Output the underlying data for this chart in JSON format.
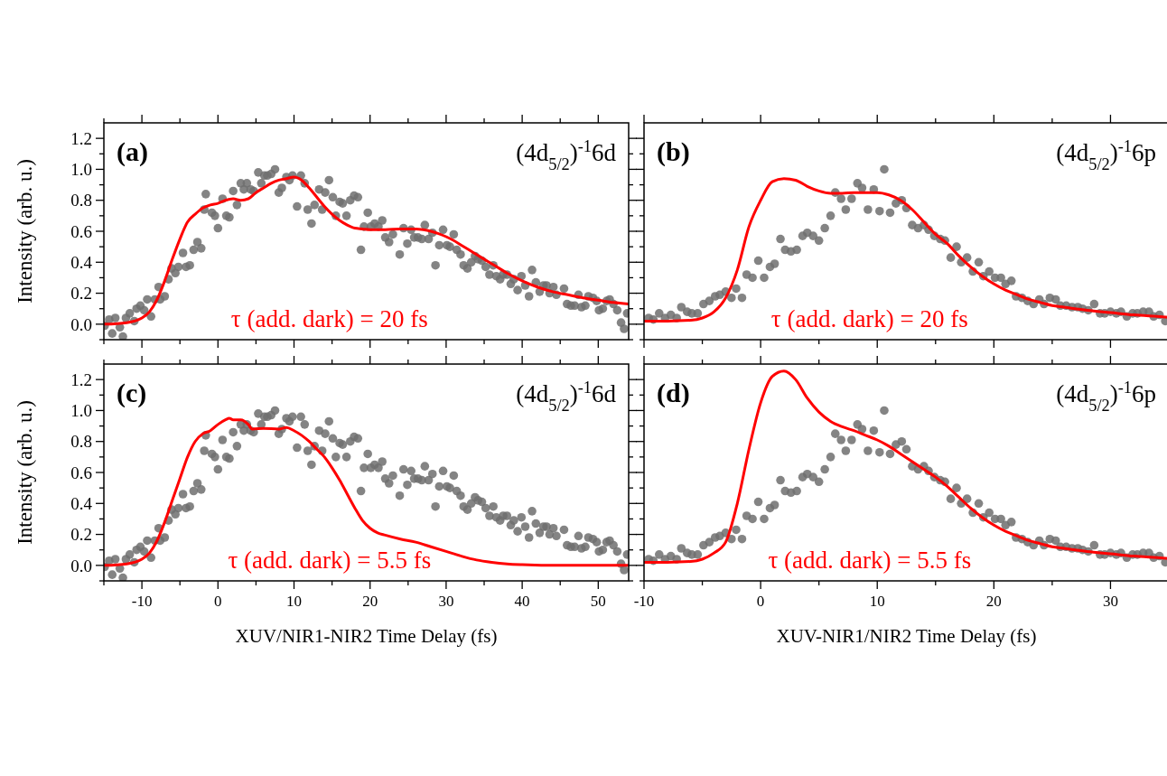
{
  "chart_data": [
    {
      "type": "scatter",
      "ylabel": "Intensity (arb. u.)",
      "xlim": [
        -15,
        54
      ],
      "ylim": [
        -0.1,
        1.3
      ],
      "tick_labels": "y",
      "xticks": [
        {
          "value": -15,
          "label": null
        },
        -10,
        {
          "value": -5,
          "label": null
        },
        0,
        {
          "value": 5,
          "label": null
        },
        10,
        {
          "value": 15,
          "label": null
        },
        20,
        {
          "value": 25,
          "label": null
        },
        30,
        {
          "value": 35,
          "label": null
        },
        40,
        {
          "value": 45,
          "label": null
        },
        50
      ],
      "yticks": [
        {
          "value": -0.1,
          "label": null
        },
        {
          "value": 0,
          "label": "0.0"
        },
        {
          "value": 0.1,
          "label": null
        },
        0.2,
        {
          "value": 0.3,
          "label": null
        },
        0.4,
        {
          "value": 0.5,
          "label": null
        },
        0.6,
        {
          "value": 0.7,
          "label": null
        },
        0.8,
        {
          "value": 0.9,
          "label": null
        },
        {
          "value": 1,
          "label": "1.0"
        },
        {
          "value": 1.1,
          "label": null
        },
        1.2
      ],
      "annotations": [
        "(a)",
        "(4d$_{5/2}$)$^{-1}$6d",
        "τ (add. dark) = 20 fs"
      ],
      "series": [
        {
          "type": "scatter",
          "marker": "circle",
          "color": "#6e6e6e",
          "x": [
            -14.9,
            -14.3,
            -13.9,
            -13.5,
            -12.9,
            -12.5,
            -12.1,
            -11.6,
            -11.0,
            -10.7,
            -10.2,
            -9.7,
            -9.3,
            -8.8,
            -8.3,
            -7.8,
            -7.6,
            -7.0,
            -6.5,
            -6.1,
            -5.6,
            -5.2,
            -4.6,
            -4.2,
            -3.7,
            -3.2,
            -2.7,
            -2.2,
            -1.8,
            -1.6,
            -0.8,
            -0.4,
            0.0,
            0.6,
            1.1,
            1.5,
            2.0,
            2.5,
            3.0,
            3.4,
            3.8,
            4.3,
            4.7,
            5.3,
            5.7,
            6.1,
            6.5,
            7.0,
            7.5,
            8.0,
            8.4,
            9.0,
            9.4,
            9.8,
            10.4,
            10.9,
            11.4,
            11.8,
            12.3,
            12.7,
            13.3,
            13.7,
            14.1,
            14.6,
            15.1,
            15.5,
            16.0,
            16.4,
            16.9,
            17.4,
            17.9,
            18.4,
            18.8,
            19.2,
            19.7,
            20.1,
            20.6,
            21.1,
            21.6,
            22.0,
            22.5,
            23.0,
            23.9,
            24.4,
            24.9,
            25.4,
            25.8,
            26.3,
            26.8,
            27.2,
            27.7,
            28.2,
            28.6,
            29.1,
            29.6,
            30.1,
            30.5,
            31.0,
            31.4,
            31.9,
            32.3,
            32.8,
            33.3,
            33.8,
            34.2,
            34.7,
            35.2,
            35.7,
            36.2,
            36.6,
            37.1,
            37.5,
            38.0,
            38.5,
            38.9,
            39.4,
            39.9,
            40.4,
            40.9,
            41.3,
            41.8,
            42.3,
            42.8,
            43.2,
            43.6,
            44.1,
            44.5,
            45.5,
            45.9,
            46.4,
            46.9,
            47.4,
            47.8,
            48.3,
            48.7,
            49.3,
            49.8,
            50.1,
            50.6,
            51.1,
            51.5,
            52.0,
            52.5,
            53.0,
            53.4,
            53.8
          ],
          "values": [
            -0.01,
            0.03,
            -0.06,
            0.04,
            -0.02,
            -0.08,
            0.04,
            0.07,
            0.02,
            0.1,
            0.12,
            0.09,
            0.16,
            0.05,
            0.16,
            0.24,
            0.16,
            0.18,
            0.29,
            0.36,
            0.33,
            0.37,
            0.46,
            0.37,
            0.38,
            0.48,
            0.53,
            0.49,
            0.74,
            0.84,
            0.72,
            0.7,
            0.62,
            0.81,
            0.7,
            0.69,
            0.86,
            0.77,
            0.91,
            0.87,
            0.91,
            0.87,
            0.86,
            0.98,
            0.91,
            0.96,
            0.96,
            0.97,
            1.0,
            0.85,
            0.88,
            0.95,
            0.93,
            0.96,
            0.76,
            0.96,
            0.91,
            0.74,
            0.65,
            0.77,
            0.87,
            0.74,
            0.85,
            0.93,
            0.82,
            0.7,
            0.79,
            0.78,
            0.7,
            0.8,
            0.83,
            0.82,
            0.48,
            0.63,
            0.72,
            0.63,
            0.65,
            0.63,
            0.67,
            0.56,
            0.53,
            0.58,
            0.45,
            0.62,
            0.52,
            0.61,
            0.56,
            0.56,
            0.55,
            0.64,
            0.55,
            0.59,
            0.38,
            0.51,
            0.61,
            0.51,
            0.5,
            0.58,
            0.48,
            0.45,
            0.38,
            0.36,
            0.4,
            0.44,
            0.42,
            0.41,
            0.37,
            0.32,
            0.38,
            0.31,
            0.29,
            0.32,
            0.32,
            0.26,
            0.29,
            0.22,
            0.31,
            0.25,
            0.18,
            0.35,
            0.27,
            0.21,
            0.25,
            0.25,
            0.2,
            0.24,
            0.19,
            0.23,
            0.13,
            0.12,
            0.12,
            0.19,
            0.11,
            0.12,
            0.18,
            0.17,
            0.15,
            0.09,
            0.1,
            0.15,
            0.16,
            0.13,
            0.09,
            0.01,
            -0.03,
            0.07
          ]
        },
        {
          "type": "line",
          "color": "#ff0000",
          "x": [
            -15,
            -12,
            -10,
            -9,
            -8,
            -7,
            -6,
            -5,
            -4,
            -3,
            -2,
            -1,
            0,
            1,
            2,
            3,
            4,
            5,
            6,
            7,
            8,
            9,
            10,
            11,
            12,
            13,
            14,
            15,
            16,
            17,
            18,
            19,
            20,
            22,
            24,
            26,
            27,
            28,
            29,
            30,
            31,
            32,
            33,
            34,
            35,
            36,
            37,
            38,
            40,
            42,
            44,
            46,
            48,
            50,
            52,
            54
          ],
          "values": [
            0.0,
            0.01,
            0.04,
            0.08,
            0.16,
            0.28,
            0.42,
            0.55,
            0.66,
            0.71,
            0.75,
            0.77,
            0.78,
            0.8,
            0.81,
            0.8,
            0.81,
            0.85,
            0.88,
            0.91,
            0.93,
            0.94,
            0.95,
            0.93,
            0.88,
            0.82,
            0.76,
            0.71,
            0.67,
            0.64,
            0.62,
            0.615,
            0.61,
            0.61,
            0.615,
            0.615,
            0.61,
            0.6,
            0.585,
            0.565,
            0.54,
            0.51,
            0.48,
            0.45,
            0.42,
            0.39,
            0.36,
            0.33,
            0.28,
            0.24,
            0.21,
            0.19,
            0.17,
            0.155,
            0.14,
            0.13
          ]
        }
      ]
    },
    {
      "type": "scatter",
      "xlim": [
        -10,
        35
      ],
      "ylim": [
        -0.1,
        1.3
      ],
      "tick_labels": false,
      "xticks": [
        -10,
        {
          "value": -5,
          "label": null
        },
        0,
        {
          "value": 5,
          "label": null
        },
        10,
        {
          "value": 15,
          "label": null
        },
        20,
        {
          "value": 25,
          "label": null
        },
        30,
        {
          "value": 35,
          "label": null
        }
      ],
      "yticks": [
        {
          "value": -0.1,
          "label": null
        },
        0,
        {
          "value": 0.1,
          "label": null
        },
        0.2,
        {
          "value": 0.3,
          "label": null
        },
        0.4,
        {
          "value": 0.5,
          "label": null
        },
        0.6,
        {
          "value": 0.7,
          "label": null
        },
        0.8,
        {
          "value": 0.9,
          "label": null
        },
        1,
        {
          "value": 1.1,
          "label": null
        },
        1.2
      ],
      "annotations": [
        "(b)",
        "(4d$_{5/2}$)$^{-1}$6p",
        "τ (add. dark) = 20 fs"
      ],
      "series": [
        {
          "type": "scatter",
          "marker": "circle",
          "color": "#6e6e6e",
          "x": [
            -9.6,
            -9.2,
            -8.7,
            -8.2,
            -7.7,
            -7.2,
            -6.8,
            -6.3,
            -5.9,
            -5.4,
            -4.9,
            -4.4,
            -3.9,
            -3.5,
            -3.0,
            -2.5,
            -2.1,
            -1.6,
            -1.2,
            -0.7,
            -0.2,
            0.3,
            0.8,
            1.2,
            1.7,
            2.1,
            2.6,
            3.1,
            3.6,
            4.0,
            4.5,
            5.0,
            5.5,
            6.0,
            6.4,
            6.9,
            7.3,
            7.8,
            8.3,
            8.7,
            9.2,
            9.7,
            10.2,
            10.6,
            11.1,
            11.6,
            12.1,
            12.5,
            13.0,
            13.5,
            14.0,
            14.4,
            14.9,
            15.4,
            15.8,
            16.3,
            16.8,
            17.2,
            17.7,
            18.2,
            18.7,
            19.1,
            19.6,
            20.1,
            20.6,
            21.0,
            21.5,
            21.9,
            22.4,
            22.9,
            23.4,
            23.9,
            24.3,
            24.8,
            25.3,
            25.7,
            26.2,
            26.7,
            27.2,
            27.6,
            28.1,
            28.6,
            29.1,
            29.5,
            30.0,
            30.5,
            30.9,
            31.4,
            31.9,
            32.3,
            32.8,
            33.3,
            33.7,
            34.2,
            34.7
          ],
          "values": [
            0.04,
            0.03,
            0.07,
            0.04,
            0.06,
            0.04,
            0.11,
            0.08,
            0.07,
            0.07,
            0.13,
            0.15,
            0.18,
            0.19,
            0.21,
            0.17,
            0.23,
            0.17,
            0.32,
            0.3,
            0.41,
            0.3,
            0.37,
            0.39,
            0.55,
            0.48,
            0.47,
            0.48,
            0.57,
            0.59,
            0.57,
            0.54,
            0.62,
            0.7,
            0.85,
            0.81,
            0.74,
            0.81,
            0.91,
            0.88,
            0.74,
            0.87,
            0.73,
            1.0,
            0.72,
            0.78,
            0.8,
            0.75,
            0.64,
            0.62,
            0.64,
            0.61,
            0.57,
            0.55,
            0.54,
            0.43,
            0.5,
            0.4,
            0.43,
            0.34,
            0.4,
            0.31,
            0.34,
            0.3,
            0.3,
            0.26,
            0.28,
            0.18,
            0.17,
            0.15,
            0.13,
            0.16,
            0.13,
            0.17,
            0.16,
            0.12,
            0.12,
            0.11,
            0.11,
            0.1,
            0.09,
            0.13,
            0.07,
            0.07,
            0.08,
            0.07,
            0.08,
            0.05,
            0.07,
            0.07,
            0.08,
            0.08,
            0.05,
            0.06,
            0.02
          ]
        },
        {
          "type": "line",
          "color": "#ff0000",
          "x": [
            -10,
            -8,
            -6,
            -5,
            -4,
            -3,
            -2,
            -1,
            0,
            1,
            2,
            3,
            4,
            5,
            6,
            7,
            8,
            9,
            10,
            11,
            12,
            13,
            14,
            15,
            16,
            17,
            18,
            19,
            20,
            21,
            22,
            23,
            24,
            25,
            26,
            28,
            30,
            32,
            34,
            35
          ],
          "values": [
            0.02,
            0.02,
            0.025,
            0.04,
            0.08,
            0.17,
            0.35,
            0.63,
            0.8,
            0.92,
            0.94,
            0.93,
            0.89,
            0.86,
            0.845,
            0.845,
            0.85,
            0.85,
            0.85,
            0.835,
            0.8,
            0.74,
            0.66,
            0.58,
            0.52,
            0.44,
            0.37,
            0.31,
            0.26,
            0.22,
            0.19,
            0.16,
            0.14,
            0.12,
            0.11,
            0.09,
            0.075,
            0.06,
            0.05,
            0.045
          ]
        }
      ]
    },
    {
      "type": "scatter",
      "xlabel": "XUV/NIR1-NIR2 Time Delay (fs)",
      "ylabel": "Intensity (arb. u.)",
      "xlim": [
        -15,
        54
      ],
      "ylim": [
        -0.1,
        1.3
      ],
      "xticks": [
        {
          "value": -15,
          "label": null
        },
        -10,
        {
          "value": -5,
          "label": null
        },
        0,
        {
          "value": 5,
          "label": null
        },
        10,
        {
          "value": 15,
          "label": null
        },
        20,
        {
          "value": 25,
          "label": null
        },
        30,
        {
          "value": 35,
          "label": null
        },
        40,
        {
          "value": 45,
          "label": null
        },
        50
      ],
      "yticks": [
        {
          "value": -0.1,
          "label": null
        },
        {
          "value": 0,
          "label": "0.0"
        },
        {
          "value": 0.1,
          "label": null
        },
        0.2,
        {
          "value": 0.3,
          "label": null
        },
        0.4,
        {
          "value": 0.5,
          "label": null
        },
        0.6,
        {
          "value": 0.7,
          "label": null
        },
        0.8,
        {
          "value": 0.9,
          "label": null
        },
        {
          "value": 1,
          "label": "1.0"
        },
        {
          "value": 1.1,
          "label": null
        },
        1.2
      ],
      "annotations": [
        "(c)",
        "(4d$_{5/2}$)$^{-1}$6d",
        "τ (add. dark) = 5.5 fs"
      ],
      "series": [
        {
          "type": "scatter",
          "marker": "circle",
          "color": "#6e6e6e",
          "x": [
            -14.9,
            -14.3,
            -13.9,
            -13.5,
            -12.9,
            -12.5,
            -12.1,
            -11.6,
            -11.0,
            -10.7,
            -10.2,
            -9.7,
            -9.3,
            -8.8,
            -8.3,
            -7.8,
            -7.6,
            -7.0,
            -6.5,
            -6.1,
            -5.6,
            -5.2,
            -4.6,
            -4.2,
            -3.7,
            -3.2,
            -2.7,
            -2.2,
            -1.8,
            -1.6,
            -0.8,
            -0.4,
            0.0,
            0.6,
            1.1,
            1.5,
            2.0,
            2.5,
            3.0,
            3.4,
            3.8,
            4.3,
            4.7,
            5.3,
            5.7,
            6.1,
            6.5,
            7.0,
            7.5,
            8.0,
            8.4,
            9.0,
            9.4,
            9.8,
            10.4,
            10.9,
            11.4,
            11.8,
            12.3,
            12.7,
            13.3,
            13.7,
            14.1,
            14.6,
            15.1,
            15.5,
            16.0,
            16.4,
            16.9,
            17.4,
            17.9,
            18.4,
            18.8,
            19.2,
            19.7,
            20.1,
            20.6,
            21.1,
            21.6,
            22.0,
            22.5,
            23.0,
            23.9,
            24.4,
            24.9,
            25.4,
            25.8,
            26.3,
            26.8,
            27.2,
            27.7,
            28.2,
            28.6,
            29.1,
            29.6,
            30.1,
            30.5,
            31.0,
            31.4,
            31.9,
            32.3,
            32.8,
            33.3,
            33.8,
            34.2,
            34.7,
            35.2,
            35.7,
            36.2,
            36.6,
            37.1,
            37.5,
            38.0,
            38.5,
            38.9,
            39.4,
            39.9,
            40.4,
            40.9,
            41.3,
            41.8,
            42.3,
            42.8,
            43.2,
            43.6,
            44.1,
            44.5,
            45.5,
            45.9,
            46.4,
            46.9,
            47.4,
            47.8,
            48.3,
            48.7,
            49.3,
            49.8,
            50.1,
            50.6,
            51.1,
            51.5,
            52.0,
            52.5,
            53.0,
            53.4,
            53.8
          ],
          "values": [
            -0.01,
            0.03,
            -0.06,
            0.04,
            -0.02,
            -0.08,
            0.04,
            0.07,
            0.02,
            0.1,
            0.12,
            0.09,
            0.16,
            0.05,
            0.16,
            0.24,
            0.16,
            0.18,
            0.29,
            0.36,
            0.33,
            0.37,
            0.46,
            0.37,
            0.38,
            0.48,
            0.53,
            0.49,
            0.74,
            0.84,
            0.72,
            0.7,
            0.62,
            0.81,
            0.7,
            0.69,
            0.86,
            0.77,
            0.91,
            0.87,
            0.91,
            0.87,
            0.86,
            0.98,
            0.91,
            0.96,
            0.96,
            0.97,
            1.0,
            0.85,
            0.88,
            0.95,
            0.93,
            0.96,
            0.76,
            0.96,
            0.91,
            0.74,
            0.65,
            0.77,
            0.87,
            0.74,
            0.85,
            0.93,
            0.82,
            0.7,
            0.79,
            0.78,
            0.7,
            0.8,
            0.83,
            0.82,
            0.48,
            0.63,
            0.72,
            0.63,
            0.65,
            0.63,
            0.67,
            0.56,
            0.53,
            0.58,
            0.45,
            0.62,
            0.52,
            0.61,
            0.56,
            0.56,
            0.55,
            0.64,
            0.55,
            0.59,
            0.38,
            0.51,
            0.61,
            0.51,
            0.5,
            0.58,
            0.48,
            0.45,
            0.38,
            0.36,
            0.4,
            0.44,
            0.42,
            0.41,
            0.37,
            0.32,
            0.38,
            0.31,
            0.29,
            0.32,
            0.32,
            0.26,
            0.29,
            0.22,
            0.31,
            0.25,
            0.18,
            0.35,
            0.27,
            0.21,
            0.25,
            0.25,
            0.2,
            0.24,
            0.19,
            0.23,
            0.13,
            0.12,
            0.12,
            0.19,
            0.11,
            0.12,
            0.18,
            0.17,
            0.15,
            0.09,
            0.1,
            0.15,
            0.16,
            0.13,
            0.09,
            0.01,
            -0.03,
            0.07
          ]
        },
        {
          "type": "line",
          "color": "#ff0000",
          "x": [
            -15,
            -12,
            -10,
            -9,
            -8,
            -7,
            -6,
            -5,
            -4,
            -3,
            -2,
            -1,
            0,
            1,
            1.5,
            2,
            3,
            4,
            4.5,
            6,
            8,
            9,
            10,
            11,
            12,
            13,
            14,
            15,
            16,
            17,
            18,
            19,
            20,
            21,
            22,
            24,
            26,
            28,
            30,
            32,
            34,
            36,
            38,
            40,
            45,
            54
          ],
          "values": [
            0,
            0.01,
            0.04,
            0.08,
            0.16,
            0.28,
            0.42,
            0.56,
            0.7,
            0.8,
            0.85,
            0.87,
            0.91,
            0.94,
            0.95,
            0.94,
            0.94,
            0.91,
            0.88,
            0.885,
            0.88,
            0.89,
            0.87,
            0.84,
            0.8,
            0.75,
            0.7,
            0.63,
            0.55,
            0.46,
            0.37,
            0.29,
            0.24,
            0.21,
            0.195,
            0.17,
            0.15,
            0.12,
            0.09,
            0.06,
            0.035,
            0.02,
            0.01,
            0.005,
            0,
            0
          ]
        }
      ]
    },
    {
      "type": "scatter",
      "xlabel": "XUV-NIR1/NIR2 Time Delay (fs)",
      "xlim": [
        -10,
        35
      ],
      "ylim": [
        -0.1,
        1.3
      ],
      "tick_labels": "x",
      "xticks": [
        -10,
        {
          "value": -5,
          "label": null
        },
        0,
        {
          "value": 5,
          "label": null
        },
        10,
        {
          "value": 15,
          "label": null
        },
        20,
        {
          "value": 25,
          "label": null
        },
        30,
        {
          "value": 35,
          "label": null
        }
      ],
      "yticks": [
        {
          "value": -0.1,
          "label": null
        },
        0,
        {
          "value": 0.1,
          "label": null
        },
        0.2,
        {
          "value": 0.3,
          "label": null
        },
        0.4,
        {
          "value": 0.5,
          "label": null
        },
        0.6,
        {
          "value": 0.7,
          "label": null
        },
        0.8,
        {
          "value": 0.9,
          "label": null
        },
        1,
        {
          "value": 1.1,
          "label": null
        },
        1.2
      ],
      "annotations": [
        "(d)",
        "(4d$_{5/2}$)$^{-1}$6p",
        "τ (add. dark) = 5.5 fs"
      ],
      "series": [
        {
          "type": "scatter",
          "marker": "circle",
          "color": "#6e6e6e",
          "x": [
            -9.6,
            -9.2,
            -8.7,
            -8.2,
            -7.7,
            -7.2,
            -6.8,
            -6.3,
            -5.9,
            -5.4,
            -4.9,
            -4.4,
            -3.9,
            -3.5,
            -3.0,
            -2.5,
            -2.1,
            -1.6,
            -1.2,
            -0.7,
            -0.2,
            0.3,
            0.8,
            1.2,
            1.7,
            2.1,
            2.6,
            3.1,
            3.6,
            4.0,
            4.5,
            5.0,
            5.5,
            6.0,
            6.4,
            6.9,
            7.3,
            7.8,
            8.3,
            8.7,
            9.2,
            9.7,
            10.2,
            10.6,
            11.1,
            11.6,
            12.1,
            12.5,
            13.0,
            13.5,
            14.0,
            14.4,
            14.9,
            15.4,
            15.8,
            16.3,
            16.8,
            17.2,
            17.7,
            18.2,
            18.7,
            19.1,
            19.6,
            20.1,
            20.6,
            21.0,
            21.5,
            21.9,
            22.4,
            22.9,
            23.4,
            23.9,
            24.3,
            24.8,
            25.3,
            25.7,
            26.2,
            26.7,
            27.2,
            27.6,
            28.1,
            28.6,
            29.1,
            29.5,
            30.0,
            30.5,
            30.9,
            31.4,
            31.9,
            32.3,
            32.8,
            33.3,
            33.7,
            34.2,
            34.7
          ],
          "values": [
            0.04,
            0.03,
            0.07,
            0.04,
            0.06,
            0.04,
            0.11,
            0.08,
            0.07,
            0.07,
            0.13,
            0.15,
            0.18,
            0.19,
            0.21,
            0.17,
            0.23,
            0.17,
            0.32,
            0.3,
            0.41,
            0.3,
            0.37,
            0.39,
            0.55,
            0.48,
            0.47,
            0.48,
            0.57,
            0.59,
            0.57,
            0.54,
            0.62,
            0.7,
            0.85,
            0.81,
            0.74,
            0.81,
            0.91,
            0.88,
            0.74,
            0.87,
            0.73,
            1.0,
            0.72,
            0.78,
            0.8,
            0.75,
            0.64,
            0.62,
            0.64,
            0.61,
            0.57,
            0.55,
            0.54,
            0.43,
            0.5,
            0.4,
            0.43,
            0.34,
            0.4,
            0.31,
            0.34,
            0.3,
            0.3,
            0.26,
            0.28,
            0.18,
            0.17,
            0.15,
            0.13,
            0.16,
            0.13,
            0.17,
            0.16,
            0.12,
            0.12,
            0.11,
            0.11,
            0.1,
            0.09,
            0.13,
            0.07,
            0.07,
            0.08,
            0.07,
            0.08,
            0.05,
            0.07,
            0.07,
            0.08,
            0.08,
            0.05,
            0.06,
            0.02
          ]
        },
        {
          "type": "line",
          "color": "#ff0000",
          "x": [
            -10,
            -8,
            -6,
            -5,
            -4,
            -3,
            -2,
            -1,
            0,
            1,
            2,
            3,
            4,
            5,
            6,
            7,
            8,
            9,
            10,
            11,
            12,
            13,
            14,
            15,
            16,
            17,
            18,
            19,
            20,
            21,
            22,
            23,
            24,
            25,
            26,
            28,
            30,
            32,
            34,
            35
          ],
          "values": [
            0.02,
            0.02,
            0.025,
            0.04,
            0.08,
            0.15,
            0.4,
            0.75,
            1.05,
            1.22,
            1.255,
            1.2,
            1.08,
            0.99,
            0.93,
            0.895,
            0.87,
            0.84,
            0.81,
            0.77,
            0.72,
            0.67,
            0.62,
            0.57,
            0.51,
            0.44,
            0.37,
            0.31,
            0.26,
            0.22,
            0.19,
            0.16,
            0.14,
            0.12,
            0.11,
            0.09,
            0.075,
            0.06,
            0.05,
            0.045
          ]
        }
      ]
    }
  ]
}
